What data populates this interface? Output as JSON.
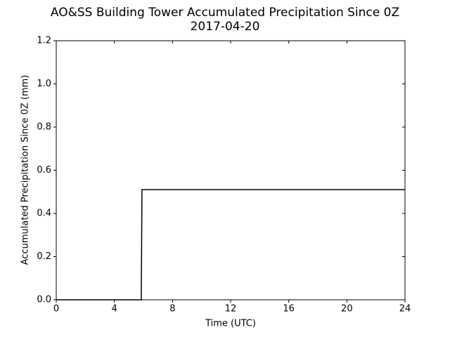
{
  "chart_data": {
    "type": "line",
    "title": "AO&SS Building Tower Accumulated Precipitation Since 0Z",
    "subtitle": "2017-04-20",
    "x_label": "Time (UTC)",
    "y_label": "Accumulated Precipitation Since 0Z (mm)",
    "x": [
      0,
      5.85,
      5.9,
      24
    ],
    "series": [
      {
        "color": "#000000",
        "values": [
          0,
          0,
          0.51,
          0.51
        ]
      }
    ],
    "xlim": [
      0,
      24
    ],
    "xticks": [
      0,
      4,
      8,
      12,
      16,
      20,
      24
    ],
    "ylim": [
      0,
      1.2
    ],
    "yticks": [
      {
        "value": 0,
        "label": "0.0"
      },
      {
        "value": 0.2,
        "label": "0.2"
      },
      {
        "value": 0.4,
        "label": "0.4"
      },
      {
        "value": 0.6,
        "label": "0.6"
      },
      {
        "value": 0.8,
        "label": "0.8"
      },
      {
        "value": 1.0,
        "label": "1.0"
      },
      {
        "value": 1.2,
        "label": "1.2"
      }
    ],
    "grid": false
  }
}
